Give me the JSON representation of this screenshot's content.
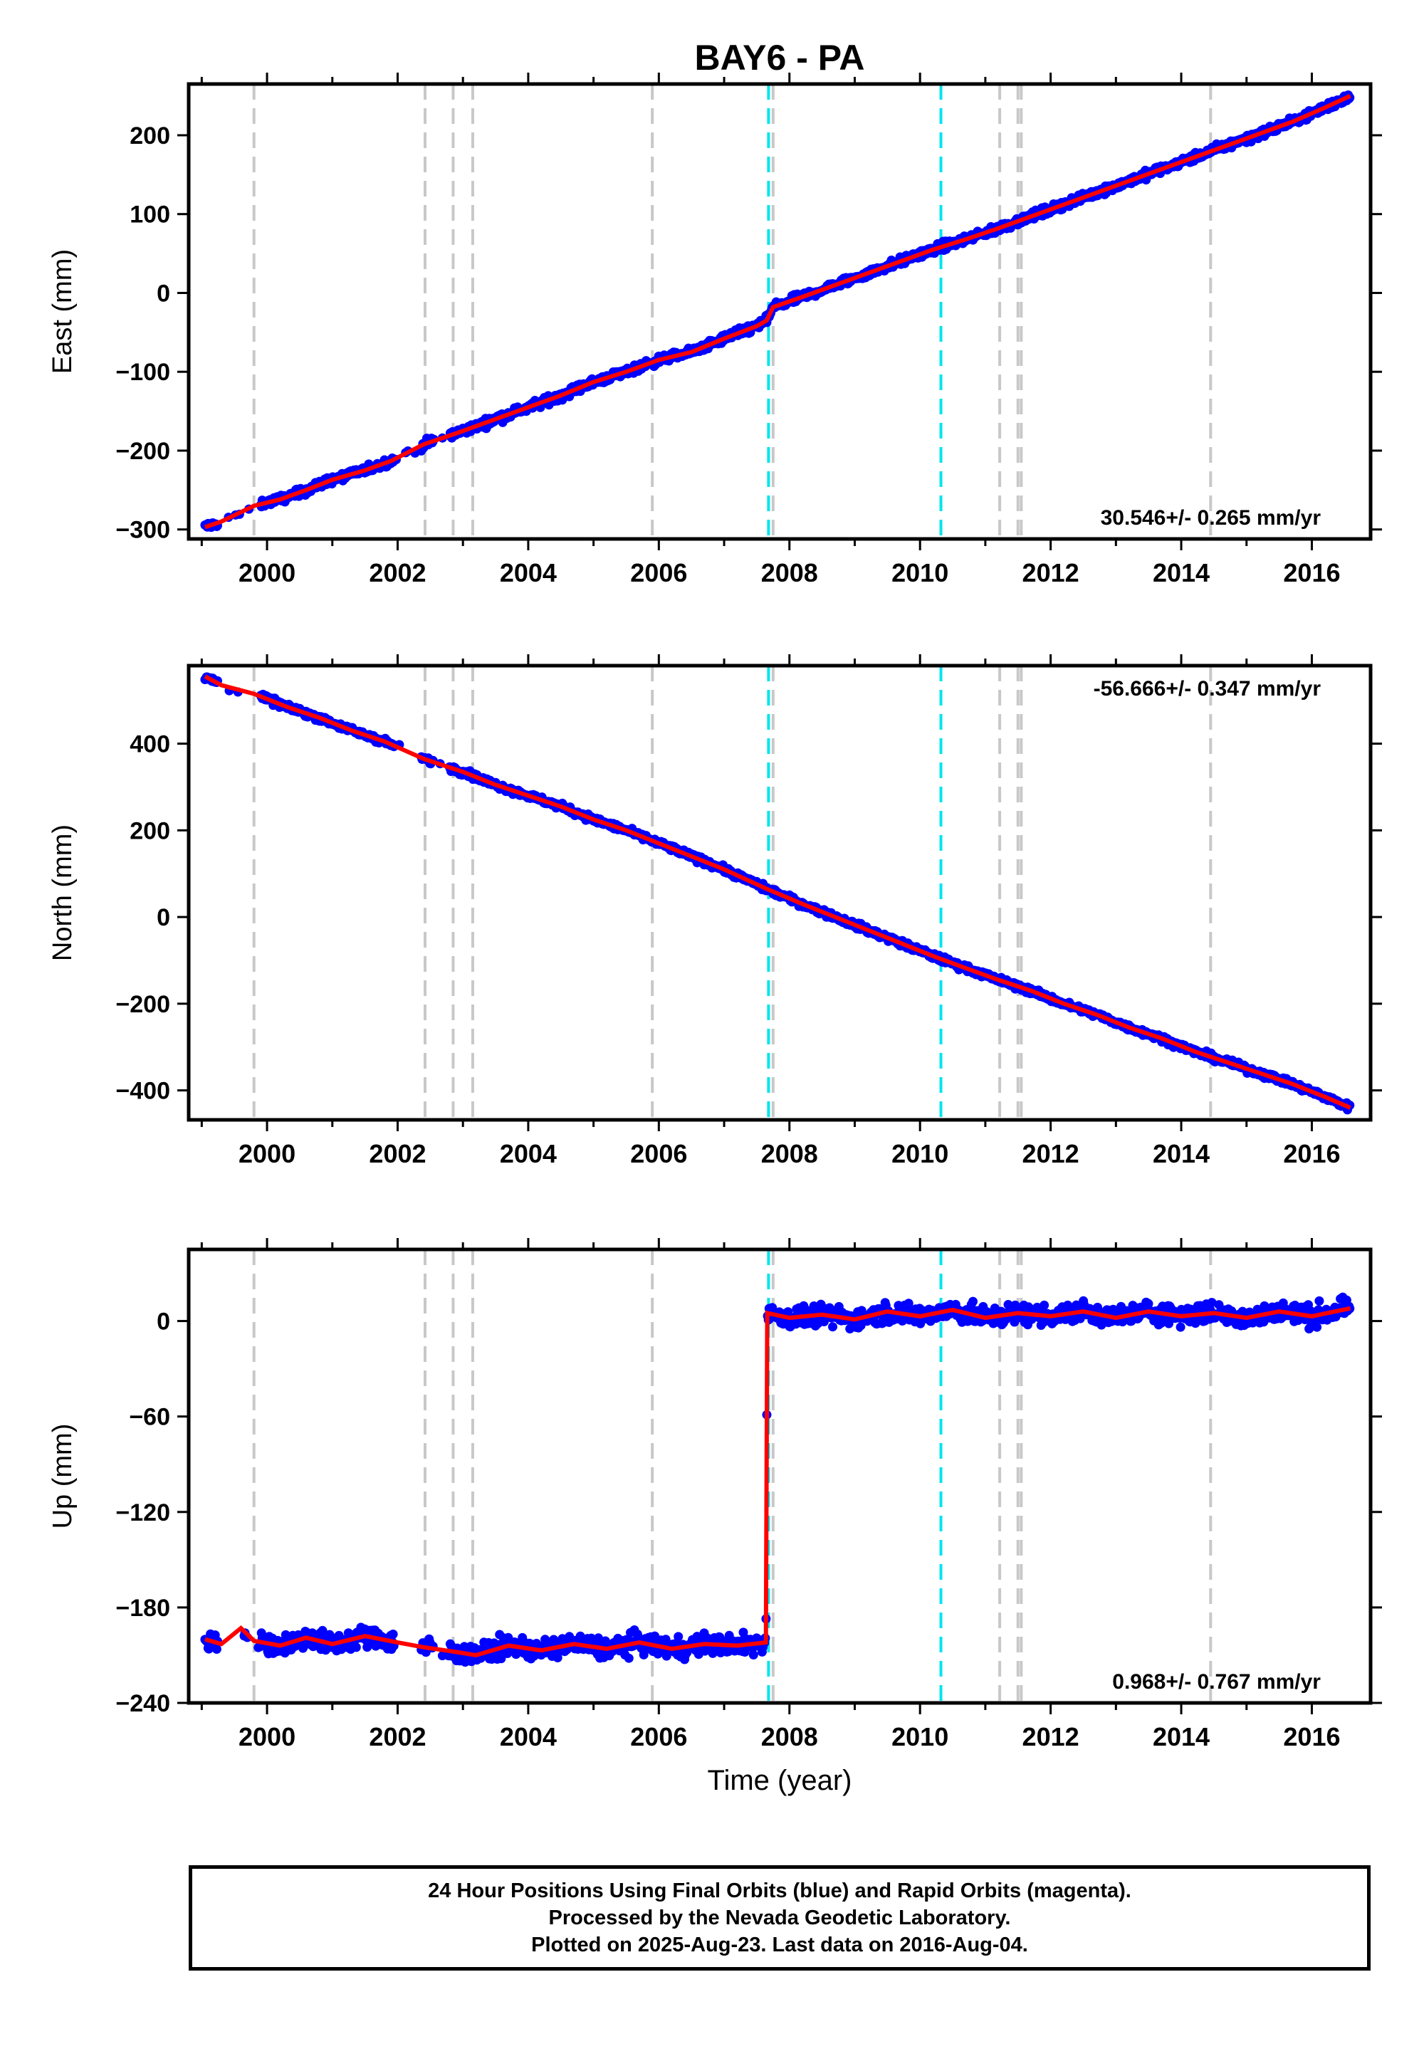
{
  "title": "BAY6 - PA",
  "colors": {
    "final_orbits": "#0000ff",
    "model": "#ff0000",
    "antenna_change": "#00e5ee",
    "event_line": "#c8c8c8",
    "frame": "#000000"
  },
  "chart_data": [
    {
      "type": "scatter",
      "panel": "east",
      "ylabel": "East (mm)",
      "xlabel": "",
      "xlim": [
        1998.8,
        2016.9
      ],
      "ylim": [
        -312,
        265
      ],
      "yticks": [
        -300,
        -200,
        -100,
        0,
        100,
        200
      ],
      "ytick_labels": [
        "−300",
        "−200",
        "−100",
        "0",
        "100",
        "200"
      ],
      "xticks": [
        2000,
        2002,
        2004,
        2006,
        2008,
        2010,
        2012,
        2014,
        2016
      ],
      "rate_label": "30.546+/- 0.265 mm/yr",
      "rate_label_position": "bottom-right",
      "series": [
        {
          "name": "",
          "values_description": "",
          "x": [
            1999.05,
            1999.3,
            1999.8,
            2000.2,
            2000.6,
            2001.0,
            2001.5,
            2001.9,
            2002.4,
            2002.9,
            2003.5,
            2004.0,
            2004.5,
            2005.0,
            2005.5,
            2006.0,
            2006.5,
            2007.0,
            2007.5,
            2007.65,
            2007.75,
            2008.2,
            2008.7,
            2009.2,
            2009.7,
            2010.2,
            2010.7,
            2011.2,
            2011.7,
            2012.2,
            2012.7,
            2013.2,
            2013.7,
            2014.2,
            2014.7,
            2015.2,
            2015.7,
            2016.2,
            2016.59
          ],
          "y": [
            -297,
            -290,
            -270,
            -262,
            -250,
            -237,
            -225,
            -213,
            -192,
            -178,
            -160,
            -145,
            -130,
            -113,
            -100,
            -85,
            -75,
            -58,
            -42,
            -35,
            -18,
            -5,
            10,
            25,
            40,
            55,
            68,
            82,
            97,
            112,
            127,
            142,
            157,
            172,
            187,
            202,
            217,
            235,
            250
          ]
        }
      ]
    },
    {
      "type": "scatter",
      "panel": "north",
      "ylabel": "North (mm)",
      "xlabel": "",
      "xlim": [
        1998.8,
        2016.9
      ],
      "ylim": [
        -468,
        580
      ],
      "yticks": [
        -400,
        -200,
        0,
        200,
        400
      ],
      "ytick_labels": [
        "−400",
        "−200",
        "0",
        "200",
        "400"
      ],
      "xticks": [
        2000,
        2002,
        2004,
        2006,
        2008,
        2010,
        2012,
        2014,
        2016
      ],
      "rate_label": "-56.666+/- 0.347 mm/yr",
      "rate_label_position": "top-right",
      "series": [
        {
          "name": "",
          "x": [
            1999.05,
            1999.3,
            1999.8,
            2000.3,
            2000.8,
            2001.3,
            2001.8,
            2002.4,
            2003.0,
            2003.5,
            2004.0,
            2004.5,
            2005.0,
            2005.5,
            2006.0,
            2006.5,
            2007.0,
            2007.65,
            2008.2,
            2008.7,
            2009.2,
            2009.7,
            2010.2,
            2010.7,
            2011.2,
            2011.7,
            2012.2,
            2012.7,
            2013.2,
            2013.7,
            2014.2,
            2014.7,
            2015.2,
            2015.7,
            2016.2,
            2016.59
          ],
          "y": [
            555,
            535,
            515,
            485,
            460,
            430,
            405,
            365,
            335,
            305,
            280,
            255,
            225,
            200,
            170,
            140,
            110,
            65,
            30,
            0,
            -30,
            -60,
            -90,
            -118,
            -145,
            -170,
            -200,
            -225,
            -255,
            -280,
            -310,
            -335,
            -360,
            -385,
            -415,
            -440
          ]
        }
      ]
    },
    {
      "type": "scatter",
      "panel": "up",
      "ylabel": "Up (mm)",
      "xlabel": "Time (year)",
      "xlim": [
        1998.8,
        2016.9
      ],
      "ylim": [
        -240,
        45
      ],
      "yticks": [
        -240,
        -180,
        -120,
        -60,
        0
      ],
      "ytick_labels": [
        "−240",
        "−180",
        "−120",
        "−60",
        "0"
      ],
      "xticks": [
        2000,
        2002,
        2004,
        2006,
        2008,
        2010,
        2012,
        2014,
        2016
      ],
      "rate_label": "0.968+/- 0.767 mm/yr",
      "rate_label_position": "bottom-right",
      "series": [
        {
          "name": "",
          "x": [
            1999.05,
            1999.3,
            1999.6,
            1999.8,
            2000.2,
            2000.6,
            2001.0,
            2001.5,
            2002.0,
            2002.4,
            2002.9,
            2003.2,
            2003.7,
            2004.2,
            2004.7,
            2005.2,
            2005.7,
            2006.2,
            2006.7,
            2007.2,
            2007.64,
            2007.66,
            2008.0,
            2008.5,
            2009.0,
            2009.5,
            2010.0,
            2010.5,
            2011.0,
            2011.5,
            2012.0,
            2012.5,
            2013.0,
            2013.5,
            2014.0,
            2014.5,
            2015.0,
            2015.5,
            2016.0,
            2016.59
          ],
          "y": [
            -200,
            -203,
            -193,
            -201,
            -204,
            -199,
            -203,
            -198,
            -202,
            -205,
            -208,
            -210,
            -204,
            -207,
            -203,
            -206,
            -202,
            -206,
            -203,
            -204,
            -202,
            5,
            2,
            4,
            1,
            6,
            3,
            7,
            2,
            5,
            3,
            6,
            2,
            6,
            3,
            5,
            2,
            6,
            3,
            8
          ]
        }
      ]
    }
  ],
  "event_lines": {
    "gray": [
      1999.8,
      2002.42,
      2002.85,
      2003.15,
      2005.9,
      2007.75,
      2011.22,
      2011.5,
      2011.55,
      2014.45
    ],
    "cyan": [
      2007.68,
      2010.32
    ]
  },
  "footer": {
    "line1": "24 Hour Positions Using Final Orbits (blue) and Rapid Orbits (magenta).",
    "line2": "Processed by the Nevada Geodetic Laboratory.",
    "line3": "Plotted on 2025-Aug-23. Last data on 2016-Aug-04."
  }
}
